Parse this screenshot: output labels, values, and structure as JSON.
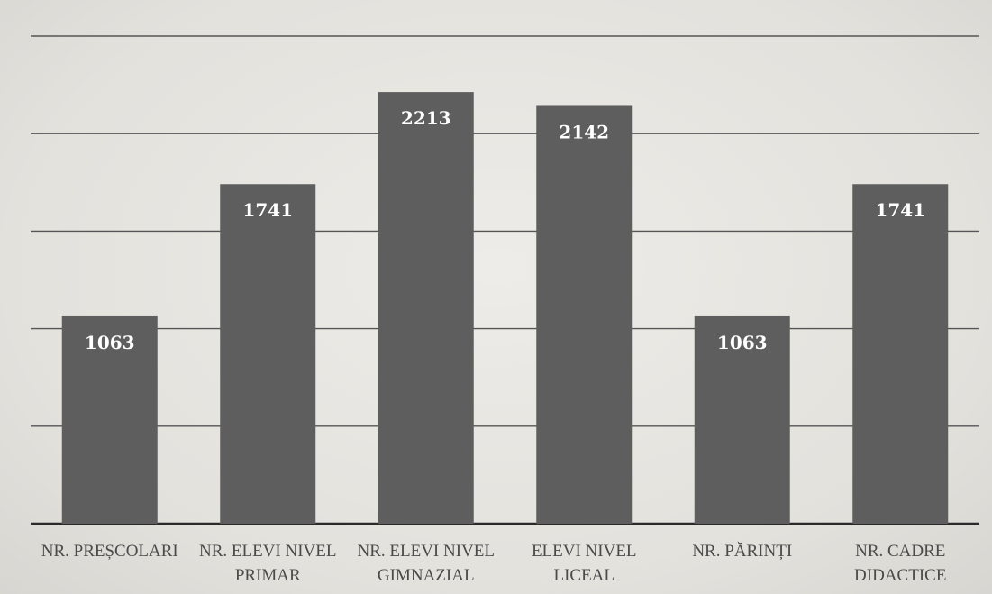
{
  "chart_data": {
    "type": "bar",
    "categories": [
      [
        "NR. PREȘCOLARI"
      ],
      [
        "NR. ELEVI NIVEL",
        "PRIMAR"
      ],
      [
        "NR. ELEVI NIVEL",
        "GIMNAZIAL"
      ],
      [
        "ELEVI NIVEL",
        "LICEAL"
      ],
      [
        "NR. PĂRINȚI"
      ],
      [
        "NR. CADRE",
        "DIDACTICE"
      ]
    ],
    "values": [
      1063,
      1741,
      2213,
      2142,
      1063,
      1741
    ],
    "data_labels": [
      "1063",
      "1741",
      "2213",
      "2142",
      "1063",
      "1741"
    ],
    "ylim": [
      0,
      2500
    ],
    "ytick_step": 500,
    "grid": true,
    "legend": "none",
    "colors": {
      "bar": "#5e5e5e",
      "label": "#ffffff",
      "grid": "#555555"
    }
  }
}
